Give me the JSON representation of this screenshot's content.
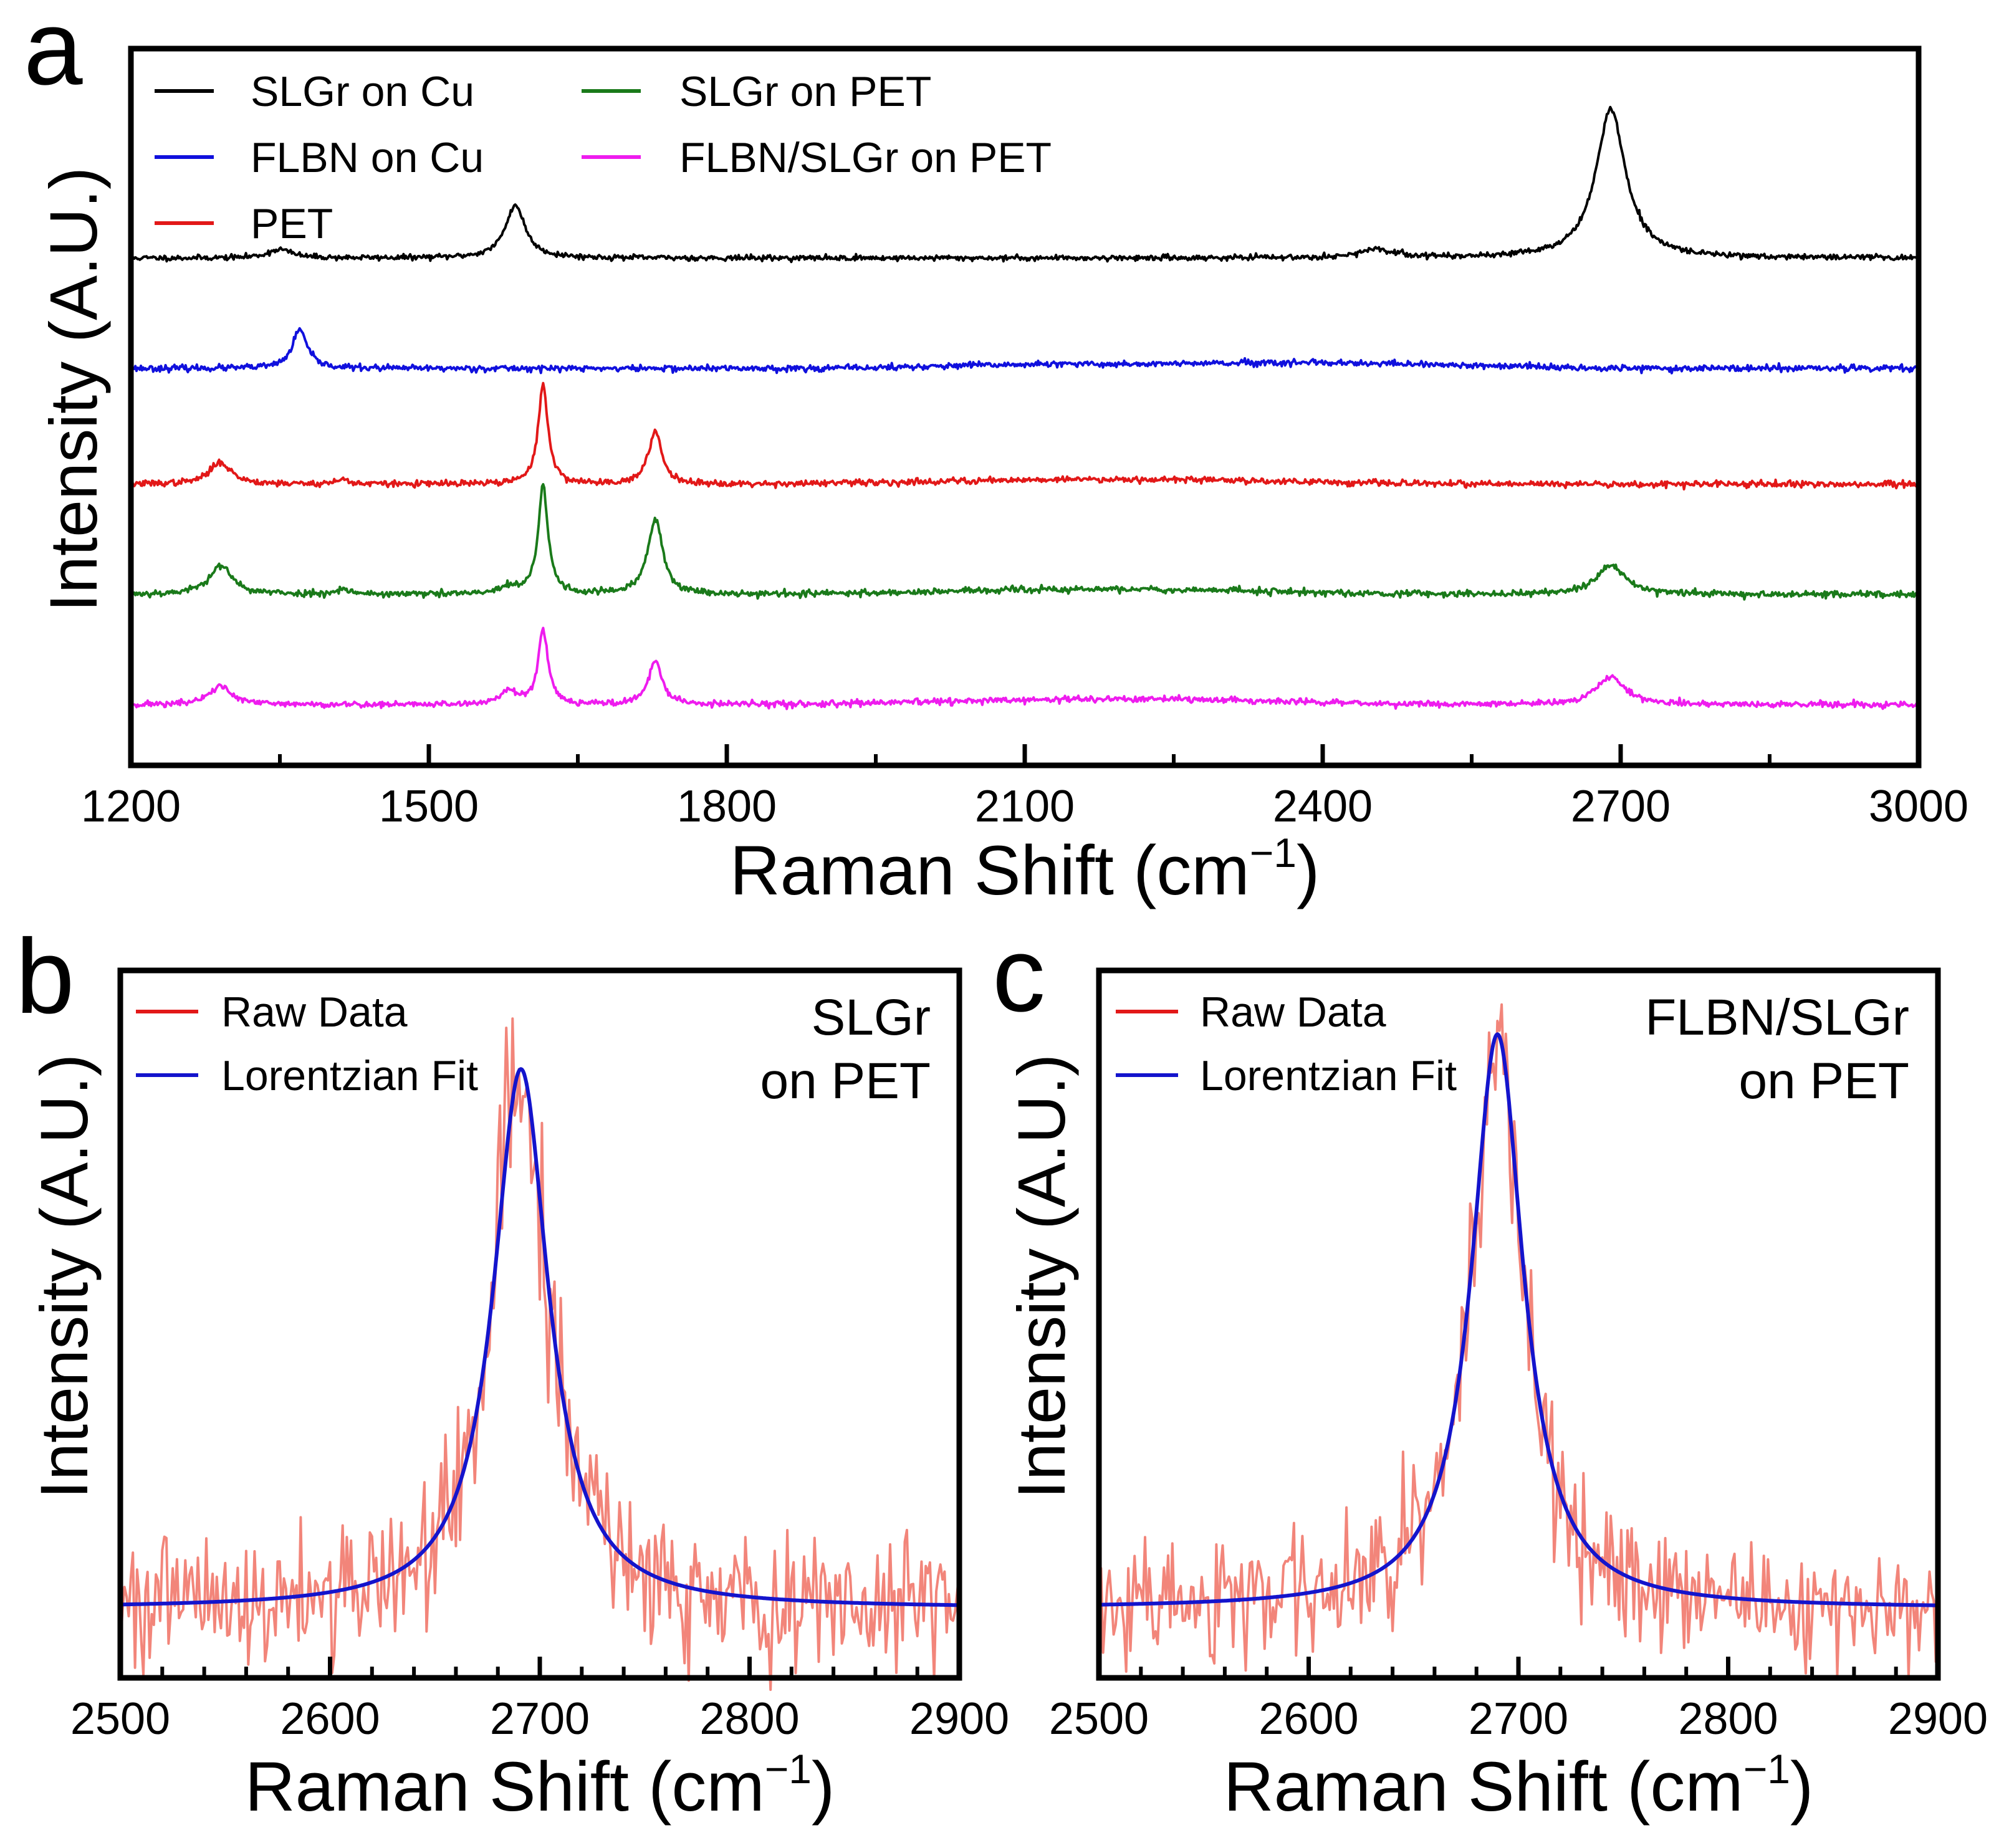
{
  "figure": {
    "panel_a": {
      "letter": "a"
    },
    "panel_b": {
      "letter": "b",
      "annotation_lines": [
        "SLGr",
        "on PET"
      ]
    },
    "panel_c": {
      "letter": "c",
      "annotation_lines": [
        "FLBN/SLGr",
        "on PET"
      ]
    }
  },
  "colors": {
    "black": "#000000",
    "blue": "#1010dd",
    "red": "#e21818",
    "green": "#1a7a1a",
    "magenta": "#ee1cee",
    "raw": "#f2857a",
    "fit": "#1414cc"
  },
  "chart_data": [
    {
      "id": "a",
      "type": "line",
      "xlabel": "Raman Shift (cm⁻¹)",
      "xlabel_main": "Raman Shift (cm",
      "xlabel_sup": "−1",
      "xlabel_close": ")",
      "ylabel": "Intensity (A.U.)",
      "xlim": [
        1200,
        3000
      ],
      "ylim": [
        -0.3,
        6.2
      ],
      "xticks": [
        1200,
        1500,
        1800,
        2100,
        2400,
        2700,
        3000
      ],
      "xtick_labels": [
        "1200",
        "1500",
        "1800",
        "2100",
        "2400",
        "2700",
        "3000"
      ],
      "minor_xticks": [
        1350,
        1650,
        1950,
        2250,
        2550,
        2850
      ],
      "legend_position": "top-left",
      "series": [
        {
          "name": "SLGr on Cu",
          "color": "#000000",
          "offset": 4.3,
          "noise": 0.012,
          "seed": 11,
          "baseline_bumps": [],
          "peaks": [
            {
              "x": 1350,
              "h": 0.08,
              "w": 14
            },
            {
              "x": 1587,
              "h": 0.48,
              "w": 12
            },
            {
              "x": 2455,
              "h": 0.07,
              "w": 22
            },
            {
              "x": 2690,
              "h": 1.35,
              "w": 18
            }
          ]
        },
        {
          "name": "FLBN on Cu",
          "color": "#1010dd",
          "offset": 3.3,
          "noise": 0.014,
          "seed": 23,
          "baseline_bumps": [
            {
              "x": 2100,
              "h": 0.03,
              "w": 90
            },
            {
              "x": 2270,
              "h": 0.025,
              "w": 90
            },
            {
              "x": 2440,
              "h": 0.04,
              "w": 120
            }
          ],
          "peaks": [
            {
              "x": 1370,
              "h": 0.35,
              "w": 9
            }
          ]
        },
        {
          "name": "PET",
          "color": "#e21818",
          "offset": 2.25,
          "noise": 0.014,
          "seed": 37,
          "baseline_bumps": [
            {
              "x": 2100,
              "h": 0.03,
              "w": 120
            },
            {
              "x": 2280,
              "h": 0.03,
              "w": 120
            }
          ],
          "peaks": [
            {
              "x": 1290,
              "h": 0.2,
              "w": 13
            },
            {
              "x": 1413,
              "h": 0.04,
              "w": 8
            },
            {
              "x": 1615,
              "h": 0.9,
              "w": 6
            },
            {
              "x": 1728,
              "h": 0.48,
              "w": 8
            }
          ]
        },
        {
          "name": "SLGr on PET",
          "color": "#1a7a1a",
          "offset": 1.25,
          "noise": 0.015,
          "seed": 53,
          "baseline_bumps": [
            {
              "x": 2100,
              "h": 0.03,
              "w": 120
            },
            {
              "x": 2270,
              "h": 0.03,
              "w": 120
            }
          ],
          "peaks": [
            {
              "x": 1290,
              "h": 0.26,
              "w": 14
            },
            {
              "x": 1413,
              "h": 0.05,
              "w": 8
            },
            {
              "x": 1580,
              "h": 0.06,
              "w": 10
            },
            {
              "x": 1615,
              "h": 0.98,
              "w": 6
            },
            {
              "x": 1728,
              "h": 0.68,
              "w": 9
            },
            {
              "x": 2690,
              "h": 0.26,
              "w": 18
            }
          ]
        },
        {
          "name": "FLBN/SLGr on PET",
          "color": "#ee1cee",
          "offset": 0.25,
          "noise": 0.014,
          "seed": 71,
          "baseline_bumps": [
            {
              "x": 2100,
              "h": 0.03,
              "w": 120
            },
            {
              "x": 2270,
              "h": 0.035,
              "w": 120
            }
          ],
          "peaks": [
            {
              "x": 1290,
              "h": 0.17,
              "w": 13
            },
            {
              "x": 1580,
              "h": 0.12,
              "w": 10
            },
            {
              "x": 1615,
              "h": 0.68,
              "w": 6
            },
            {
              "x": 1728,
              "h": 0.4,
              "w": 8
            },
            {
              "x": 2690,
              "h": 0.25,
              "w": 18
            }
          ]
        }
      ]
    },
    {
      "id": "b",
      "type": "line",
      "xlabel": "Raman Shift (cm⁻¹)",
      "xlabel_main": "Raman Shift (cm",
      "xlabel_sup": "−1",
      "xlabel_close": ")",
      "ylabel": "Intensity (A.U.)",
      "xlim": [
        2500,
        2900
      ],
      "ylim": [
        -0.12,
        1.1
      ],
      "xticks": [
        2500,
        2600,
        2700,
        2800,
        2900
      ],
      "xtick_labels": [
        "2500",
        "2600",
        "2700",
        "2800",
        "2900"
      ],
      "minor_xticks": [
        2520,
        2540,
        2560,
        2580,
        2620,
        2640,
        2660,
        2680,
        2720,
        2740,
        2760,
        2780,
        2820,
        2840,
        2860,
        2880
      ],
      "legend_position": "top-left",
      "fit": {
        "center": 2691,
        "fwhm": 32,
        "amplitude": 0.93,
        "baseline": 0.0
      },
      "series": [
        {
          "name": "Raw Data",
          "color": "#f2857a",
          "noise": 0.055,
          "seed": 101
        },
        {
          "name": "Lorentzian Fit",
          "color": "#1414cc"
        }
      ]
    },
    {
      "id": "c",
      "type": "line",
      "xlabel": "Raman Shift (cm⁻¹)",
      "xlabel_main": "Raman Shift (cm",
      "xlabel_sup": "−1",
      "xlabel_close": ")",
      "ylabel": "Intensity (A.U.)",
      "xlim": [
        2500,
        2900
      ],
      "ylim": [
        -0.12,
        1.1
      ],
      "xticks": [
        2500,
        2600,
        2700,
        2800,
        2900
      ],
      "xtick_labels": [
        "2500",
        "2600",
        "2700",
        "2800",
        "2900"
      ],
      "minor_xticks": [
        2520,
        2540,
        2560,
        2580,
        2620,
        2640,
        2660,
        2680,
        2720,
        2740,
        2760,
        2780,
        2820,
        2840,
        2860,
        2880
      ],
      "legend_position": "top-left",
      "fit": {
        "center": 2690,
        "fwhm": 30,
        "amplitude": 0.99,
        "baseline": 0.0
      },
      "series": [
        {
          "name": "Raw Data",
          "color": "#f2857a",
          "noise": 0.05,
          "seed": 202
        },
        {
          "name": "Lorentzian Fit",
          "color": "#1414cc"
        }
      ]
    }
  ]
}
